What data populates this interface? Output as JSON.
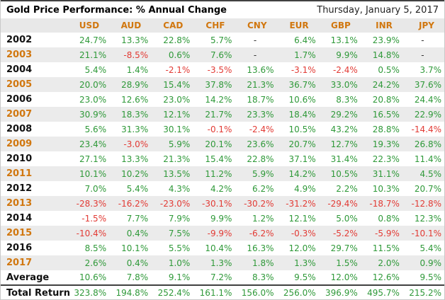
{
  "chart_data": {
    "type": "table",
    "title": "Gold Price Performance: % Annual Change",
    "date": "Thursday, January 5, 2017",
    "columns": [
      "USD",
      "AUD",
      "CAD",
      "CHF",
      "CNY",
      "EUR",
      "GBP",
      "INR",
      "JPY"
    ],
    "rows": [
      {
        "label": "2002",
        "accent": false,
        "striped": false,
        "total": false,
        "values": [
          "24.7%",
          "13.3%",
          "22.8%",
          "5.7%",
          "-",
          "6.4%",
          "13.1%",
          "23.9%",
          "-"
        ]
      },
      {
        "label": "2003",
        "accent": true,
        "striped": true,
        "total": false,
        "values": [
          "21.1%",
          "-8.5%",
          "0.6%",
          "7.6%",
          "-",
          "1.7%",
          "9.9%",
          "14.8%",
          "-"
        ]
      },
      {
        "label": "2004",
        "accent": false,
        "striped": false,
        "total": false,
        "values": [
          "5.4%",
          "1.4%",
          "-2.1%",
          "-3.5%",
          "13.6%",
          "-3.1%",
          "-2.4%",
          "0.5%",
          "3.7%"
        ]
      },
      {
        "label": "2005",
        "accent": true,
        "striped": true,
        "total": false,
        "values": [
          "20.0%",
          "28.9%",
          "15.4%",
          "37.8%",
          "21.3%",
          "36.7%",
          "33.0%",
          "24.2%",
          "37.6%"
        ]
      },
      {
        "label": "2006",
        "accent": false,
        "striped": false,
        "total": false,
        "values": [
          "23.0%",
          "12.6%",
          "23.0%",
          "14.2%",
          "18.7%",
          "10.6%",
          "8.3%",
          "20.8%",
          "24.4%"
        ]
      },
      {
        "label": "2007",
        "accent": true,
        "striped": true,
        "total": false,
        "values": [
          "30.9%",
          "18.3%",
          "12.1%",
          "21.7%",
          "23.3%",
          "18.4%",
          "29.2%",
          "16.5%",
          "22.9%"
        ]
      },
      {
        "label": "2008",
        "accent": false,
        "striped": false,
        "total": false,
        "values": [
          "5.6%",
          "31.3%",
          "30.1%",
          "-0.1%",
          "-2.4%",
          "10.5%",
          "43.2%",
          "28.8%",
          "-14.4%"
        ]
      },
      {
        "label": "2009",
        "accent": true,
        "striped": true,
        "total": false,
        "values": [
          "23.4%",
          "-3.0%",
          "5.9%",
          "20.1%",
          "23.6%",
          "20.7%",
          "12.7%",
          "19.3%",
          "26.8%"
        ]
      },
      {
        "label": "2010",
        "accent": false,
        "striped": false,
        "total": false,
        "values": [
          "27.1%",
          "13.3%",
          "21.3%",
          "15.4%",
          "22.8%",
          "37.1%",
          "31.4%",
          "22.3%",
          "11.4%"
        ]
      },
      {
        "label": "2011",
        "accent": true,
        "striped": true,
        "total": false,
        "values": [
          "10.1%",
          "10.2%",
          "13.5%",
          "11.2%",
          "5.9%",
          "14.2%",
          "10.5%",
          "31.1%",
          "4.5%"
        ]
      },
      {
        "label": "2012",
        "accent": false,
        "striped": false,
        "total": false,
        "values": [
          "7.0%",
          "5.4%",
          "4.3%",
          "4.2%",
          "6.2%",
          "4.9%",
          "2.2%",
          "10.3%",
          "20.7%"
        ]
      },
      {
        "label": "2013",
        "accent": true,
        "striped": true,
        "total": false,
        "values": [
          "-28.3%",
          "-16.2%",
          "-23.0%",
          "-30.1%",
          "-30.2%",
          "-31.2%",
          "-29.4%",
          "-18.7%",
          "-12.8%"
        ]
      },
      {
        "label": "2014",
        "accent": false,
        "striped": false,
        "total": false,
        "values": [
          "-1.5%",
          "7.7%",
          "7.9%",
          "9.9%",
          "1.2%",
          "12.1%",
          "5.0%",
          "0.8%",
          "12.3%"
        ]
      },
      {
        "label": "2015",
        "accent": true,
        "striped": true,
        "total": false,
        "values": [
          "-10.4%",
          "0.4%",
          "7.5%",
          "-9.9%",
          "-6.2%",
          "-0.3%",
          "-5.2%",
          "-5.9%",
          "-10.1%"
        ]
      },
      {
        "label": "2016",
        "accent": false,
        "striped": false,
        "total": false,
        "values": [
          "8.5%",
          "10.1%",
          "5.5%",
          "10.4%",
          "16.3%",
          "12.0%",
          "29.7%",
          "11.5%",
          "5.4%"
        ]
      },
      {
        "label": "2017",
        "accent": true,
        "striped": true,
        "total": false,
        "values": [
          "2.6%",
          "0.4%",
          "1.0%",
          "1.3%",
          "1.8%",
          "1.3%",
          "1.5%",
          "2.0%",
          "0.9%"
        ]
      },
      {
        "label": "Average",
        "accent": false,
        "striped": false,
        "total": false,
        "values": [
          "10.6%",
          "7.8%",
          "9.1%",
          "7.2%",
          "8.3%",
          "9.5%",
          "12.0%",
          "12.6%",
          "9.5%"
        ]
      },
      {
        "label": "Total Return",
        "accent": false,
        "striped": false,
        "total": true,
        "values": [
          "323.8%",
          "194.8%",
          "252.4%",
          "161.1%",
          "156.0%",
          "256.0%",
          "396.9%",
          "495.7%",
          "215.2%"
        ]
      }
    ]
  },
  "colors": {
    "positive": "#2f9939",
    "negative": "#e23b35",
    "accent": "#d1770f",
    "dash": "#333333",
    "stripe": "#ebebeb",
    "header_bg": "#e8e8e8",
    "label": "#111111",
    "rule": "#414141"
  }
}
